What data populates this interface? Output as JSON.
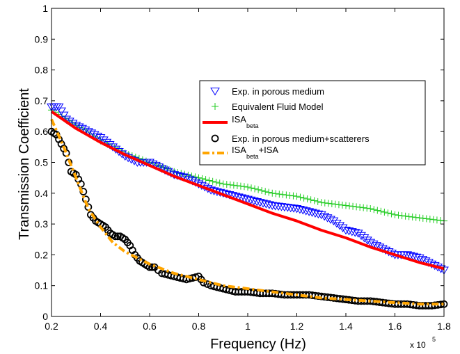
{
  "chart_data": {
    "type": "line",
    "title": "",
    "xlabel": "Frequency (Hz)",
    "ylabel": "Transmission Coefficient",
    "x_multiplier": "x 10",
    "x_multiplier_exp": "5",
    "xlim": [
      0.2,
      1.8
    ],
    "ylim": [
      0,
      1
    ],
    "xticks": [
      "0.2",
      "0.4",
      "0.6",
      "0.8",
      "1",
      "1.2",
      "1.4",
      "1.6",
      "1.8"
    ],
    "yticks": [
      "0",
      "0.1",
      "0.2",
      "0.3",
      "0.4",
      "0.5",
      "0.6",
      "0.7",
      "0.8",
      "0.9",
      "1"
    ],
    "grid": false,
    "legend_position": "top-right",
    "series": [
      {
        "name": "Exp. in porous medium",
        "marker": "triangle-down",
        "color": "#0000ff",
        "x": [
          0.2,
          0.23,
          0.26,
          0.3,
          0.35,
          0.4,
          0.45,
          0.5,
          0.55,
          0.6,
          0.65,
          0.7,
          0.75,
          0.8,
          0.85,
          0.9,
          0.95,
          1.0,
          1.05,
          1.1,
          1.15,
          1.2,
          1.25,
          1.3,
          1.35,
          1.4,
          1.45,
          1.5,
          1.55,
          1.6,
          1.65,
          1.7,
          1.75,
          1.8
        ],
        "y": [
          0.68,
          0.68,
          0.64,
          0.62,
          0.6,
          0.58,
          0.55,
          0.52,
          0.5,
          0.5,
          0.48,
          0.46,
          0.45,
          0.43,
          0.41,
          0.4,
          0.39,
          0.38,
          0.37,
          0.36,
          0.355,
          0.35,
          0.34,
          0.33,
          0.31,
          0.28,
          0.27,
          0.24,
          0.22,
          0.2,
          0.2,
          0.19,
          0.17,
          0.15
        ]
      },
      {
        "name": "Equivalent Fluid Model",
        "marker": "plus",
        "color": "#22cc22",
        "x": [
          0.2,
          0.3,
          0.4,
          0.5,
          0.6,
          0.7,
          0.8,
          0.9,
          1.0,
          1.1,
          1.2,
          1.3,
          1.4,
          1.5,
          1.6,
          1.7,
          1.8
        ],
        "y": [
          0.67,
          0.62,
          0.57,
          0.53,
          0.5,
          0.47,
          0.45,
          0.43,
          0.42,
          0.4,
          0.39,
          0.37,
          0.36,
          0.35,
          0.33,
          0.32,
          0.31
        ]
      },
      {
        "name": "ISA",
        "name_sub": "beta",
        "line": "solid",
        "color": "#ff0000",
        "x": [
          0.2,
          0.3,
          0.4,
          0.5,
          0.6,
          0.7,
          0.8,
          0.9,
          1.0,
          1.1,
          1.2,
          1.3,
          1.4,
          1.5,
          1.6,
          1.7,
          1.8
        ],
        "y": [
          0.665,
          0.61,
          0.565,
          0.525,
          0.49,
          0.455,
          0.425,
          0.395,
          0.365,
          0.335,
          0.31,
          0.28,
          0.255,
          0.225,
          0.2,
          0.175,
          0.155
        ]
      },
      {
        "name": "Exp. in porous medium+scatterers",
        "marker": "circle",
        "color": "#000000",
        "x": [
          0.2,
          0.22,
          0.24,
          0.26,
          0.28,
          0.3,
          0.32,
          0.34,
          0.36,
          0.38,
          0.4,
          0.42,
          0.44,
          0.46,
          0.48,
          0.5,
          0.52,
          0.54,
          0.56,
          0.58,
          0.6,
          0.62,
          0.65,
          0.7,
          0.75,
          0.8,
          0.82,
          0.85,
          0.9,
          0.95,
          1.0,
          1.05,
          1.1,
          1.15,
          1.2,
          1.25,
          1.3,
          1.35,
          1.4,
          1.45,
          1.5,
          1.55,
          1.6,
          1.65,
          1.7,
          1.75,
          1.8
        ],
        "y": [
          0.6,
          0.59,
          0.56,
          0.53,
          0.47,
          0.46,
          0.43,
          0.38,
          0.33,
          0.31,
          0.3,
          0.29,
          0.27,
          0.26,
          0.26,
          0.25,
          0.23,
          0.2,
          0.18,
          0.17,
          0.16,
          0.16,
          0.14,
          0.13,
          0.12,
          0.13,
          0.11,
          0.1,
          0.09,
          0.08,
          0.08,
          0.075,
          0.075,
          0.07,
          0.07,
          0.07,
          0.065,
          0.06,
          0.055,
          0.05,
          0.05,
          0.045,
          0.04,
          0.04,
          0.035,
          0.035,
          0.04
        ]
      },
      {
        "name": "ISA",
        "name_sub": "beta",
        "name_suffix": "+ISA",
        "line": "dash-dot",
        "color": "#ffa500",
        "x": [
          0.2,
          0.25,
          0.3,
          0.35,
          0.4,
          0.45,
          0.5,
          0.55,
          0.6,
          0.7,
          0.8,
          0.9,
          1.0,
          1.1,
          1.2,
          1.3,
          1.4,
          1.5,
          1.6,
          1.7,
          1.8
        ],
        "y": [
          0.64,
          0.55,
          0.45,
          0.35,
          0.29,
          0.24,
          0.21,
          0.19,
          0.17,
          0.14,
          0.12,
          0.1,
          0.09,
          0.08,
          0.07,
          0.06,
          0.055,
          0.05,
          0.045,
          0.04,
          0.04
        ]
      }
    ]
  }
}
